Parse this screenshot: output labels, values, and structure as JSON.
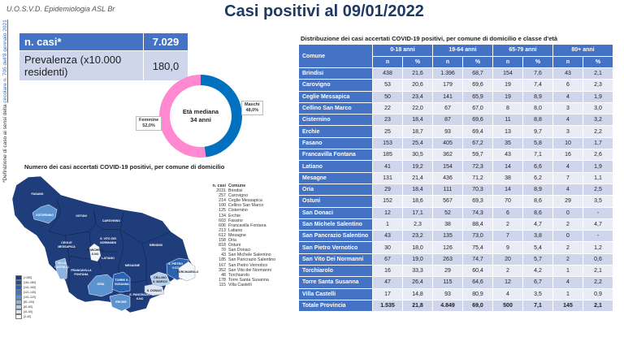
{
  "header": {
    "org": "U.O.S.V.D. Epidemiologia ASL Br",
    "title": "Casi positivi al 09/01/2022"
  },
  "footnote": {
    "prefix": "*Definizione di caso ai sensi della ",
    "link": "circolare n. 705 dell'8 gennaio 2021"
  },
  "summary": {
    "cases_label": "n. casi*",
    "cases_value": "7.029",
    "prevalence_label": "Prevalenza (x10.000 residenti)",
    "prevalence_value": "180,0"
  },
  "donut": {
    "center_line1": "Età mediana",
    "center_line2": "34 anni",
    "slices": [
      {
        "label": "Maschi",
        "value_label": "48,0%",
        "value": 48.0,
        "color": "#0070c0"
      },
      {
        "label": "Femmine",
        "value_label": "52,0%",
        "value": 52.0,
        "color": "#ff88d0"
      }
    ]
  },
  "map": {
    "title": "Numero dei casi accertati COVID-19 positivi, per comune di domicilio",
    "list_header_n": "n. casi",
    "list_header_comune": "Comune",
    "list": [
      {
        "n": "2031",
        "comune": "Brindisi"
      },
      {
        "n": "257",
        "comune": "Carovigno"
      },
      {
        "n": "214",
        "comune": "Ceglie Messapica"
      },
      {
        "n": "100",
        "comune": "Cellino San Marco"
      },
      {
        "n": "125",
        "comune": "Cisternino"
      },
      {
        "n": "134",
        "comune": "Erchie"
      },
      {
        "n": "603",
        "comune": "Fasano"
      },
      {
        "n": "606",
        "comune": "Francavilla Fontana"
      },
      {
        "n": "213",
        "comune": "Latiano"
      },
      {
        "n": "612",
        "comune": "Mesagne"
      },
      {
        "n": "158",
        "comune": "Oria"
      },
      {
        "n": "818",
        "comune": "Ostuni"
      },
      {
        "n": "70",
        "comune": "San Donaci"
      },
      {
        "n": "43",
        "comune": "San Michele Salentino"
      },
      {
        "n": "185",
        "comune": "San Pancrazio Salentino"
      },
      {
        "n": "167",
        "comune": "San Pietro Vernotico"
      },
      {
        "n": "352",
        "comune": "San Vito dei Normanni"
      },
      {
        "n": "48",
        "comune": "Torchiarolo"
      },
      {
        "n": "178",
        "comune": "Torre Santa Susanna"
      },
      {
        "n": "115",
        "comune": "Villa Castelli"
      }
    ],
    "labels": {
      "fasano": "FASANO",
      "cisternino": "CISTERNINO",
      "ostuni": "OSTUNI",
      "carovigno": "CAROVIGNO",
      "brindisi": "BRINDISI",
      "ceglie1": "CEGLIE",
      "ceglie2": "MESSAPICA",
      "svito1": "S. VITO DEI",
      "svito2": "NORMANNI",
      "smichele1": "S. MICHELE",
      "smichele2": "S.NO",
      "latiano": "LATIANO",
      "villa1": "VILLA",
      "villa2": "CASTELLI",
      "franca1": "FRANCAVILLA",
      "franca2": "FONTANA",
      "mesagne": "MESAGNE",
      "oria": "ORIA",
      "torre1": "TORRE S.",
      "torre2": "SUSANNA",
      "erchie": "ERCHIE",
      "spancr1": "S. PANCRAZIO",
      "spancr2": "S.NO",
      "spietro1": "S. PIETRO",
      "spietro2": "V.CO",
      "cellino1": "CELLINO",
      "cellino2": "S. MARCO",
      "sdonaci": "S. DONACI",
      "torchiarolo": "TORCHIAROLO"
    },
    "legend": [
      {
        "label": "[>180]",
        "color": "#1f3d7a"
      },
      {
        "label": "[161-180]",
        "color": "#1f4e96"
      },
      {
        "label": "[141-160]",
        "color": "#2a62b0"
      },
      {
        "label": "[121-140]",
        "color": "#3b78c4"
      },
      {
        "label": "[101-120]",
        "color": "#5b93d1"
      },
      {
        "label": "[81-100]",
        "color": "#8cb4e0"
      },
      {
        "label": "[61-80]",
        "color": "#b6cfec"
      },
      {
        "label": "[41-60]",
        "color": "#dae6f5"
      },
      {
        "label": "[0-40]",
        "color": "#f4f8fc"
      }
    ]
  },
  "age_table": {
    "title": "Distribuzione dei casi accertati COVID-19 positivi, per comune di domicilio e classe d'età",
    "comune_header": "Comune",
    "groups": [
      "0-18 anni",
      "19-64 anni",
      "65-79 anni",
      "80+ anni"
    ],
    "sub_n": "n",
    "sub_pct": "%",
    "rows": [
      [
        "Brindisi",
        "438",
        "21,6",
        "1.396",
        "68,7",
        "154",
        "7,6",
        "43",
        "2,1"
      ],
      [
        "Carovigno",
        "53",
        "20,6",
        "179",
        "69,6",
        "19",
        "7,4",
        "6",
        "2,3"
      ],
      [
        "Ceglie Messapica",
        "50",
        "23,4",
        "141",
        "65,9",
        "19",
        "8,9",
        "4",
        "1,9"
      ],
      [
        "Cellino San Marco",
        "22",
        "22,0",
        "67",
        "67,0",
        "8",
        "8,0",
        "3",
        "3,0"
      ],
      [
        "Cisternino",
        "23",
        "18,4",
        "87",
        "69,6",
        "11",
        "8,8",
        "4",
        "3,2"
      ],
      [
        "Erchie",
        "25",
        "18,7",
        "93",
        "69,4",
        "13",
        "9,7",
        "3",
        "2,2"
      ],
      [
        "Fasano",
        "153",
        "25,4",
        "405",
        "67,2",
        "35",
        "5,8",
        "10",
        "1,7"
      ],
      [
        "Francavilla Fontana",
        "185",
        "30,5",
        "362",
        "59,7",
        "43",
        "7,1",
        "16",
        "2,6"
      ],
      [
        "Latiano",
        "41",
        "19,2",
        "154",
        "72,3",
        "14",
        "6,6",
        "4",
        "1,9"
      ],
      [
        "Mesagne",
        "131",
        "21,4",
        "436",
        "71,2",
        "38",
        "6,2",
        "7",
        "1,1"
      ],
      [
        "Oria",
        "29",
        "18,4",
        "111",
        "70,3",
        "14",
        "8,9",
        "4",
        "2,5"
      ],
      [
        "Ostuni",
        "152",
        "18,6",
        "567",
        "69,3",
        "70",
        "8,6",
        "29",
        "3,5"
      ],
      [
        "San Donaci",
        "12",
        "17,1",
        "52",
        "74,3",
        "6",
        "8,6",
        "0",
        "-"
      ],
      [
        "San Michele Salentino",
        "1",
        "2,3",
        "38",
        "88,4",
        "2",
        "4,7",
        "2",
        "4,7"
      ],
      [
        "San Pancrazio Salentino",
        "43",
        "23,2",
        "135",
        "73,0",
        "7",
        "3,8",
        "0",
        "-"
      ],
      [
        "San Pietro Vernotico",
        "30",
        "18,0",
        "126",
        "75,4",
        "9",
        "5,4",
        "2",
        "1,2"
      ],
      [
        "San Vito Dei Normanni",
        "67",
        "19,0",
        "263",
        "74,7",
        "20",
        "5,7",
        "2",
        "0,6"
      ],
      [
        "Torchiarolo",
        "16",
        "33,3",
        "29",
        "60,4",
        "2",
        "4,2",
        "1",
        "2,1"
      ],
      [
        "Torre Santa Susanna",
        "47",
        "26,4",
        "115",
        "64,6",
        "12",
        "6,7",
        "4",
        "2,2"
      ],
      [
        "Villa Castelli",
        "17",
        "14,8",
        "93",
        "80,9",
        "4",
        "3,5",
        "1",
        "0,9"
      ],
      [
        "Totale Provincia",
        "1.535",
        "21,8",
        "4.849",
        "69,0",
        "500",
        "7,1",
        "145",
        "2,1"
      ]
    ]
  }
}
